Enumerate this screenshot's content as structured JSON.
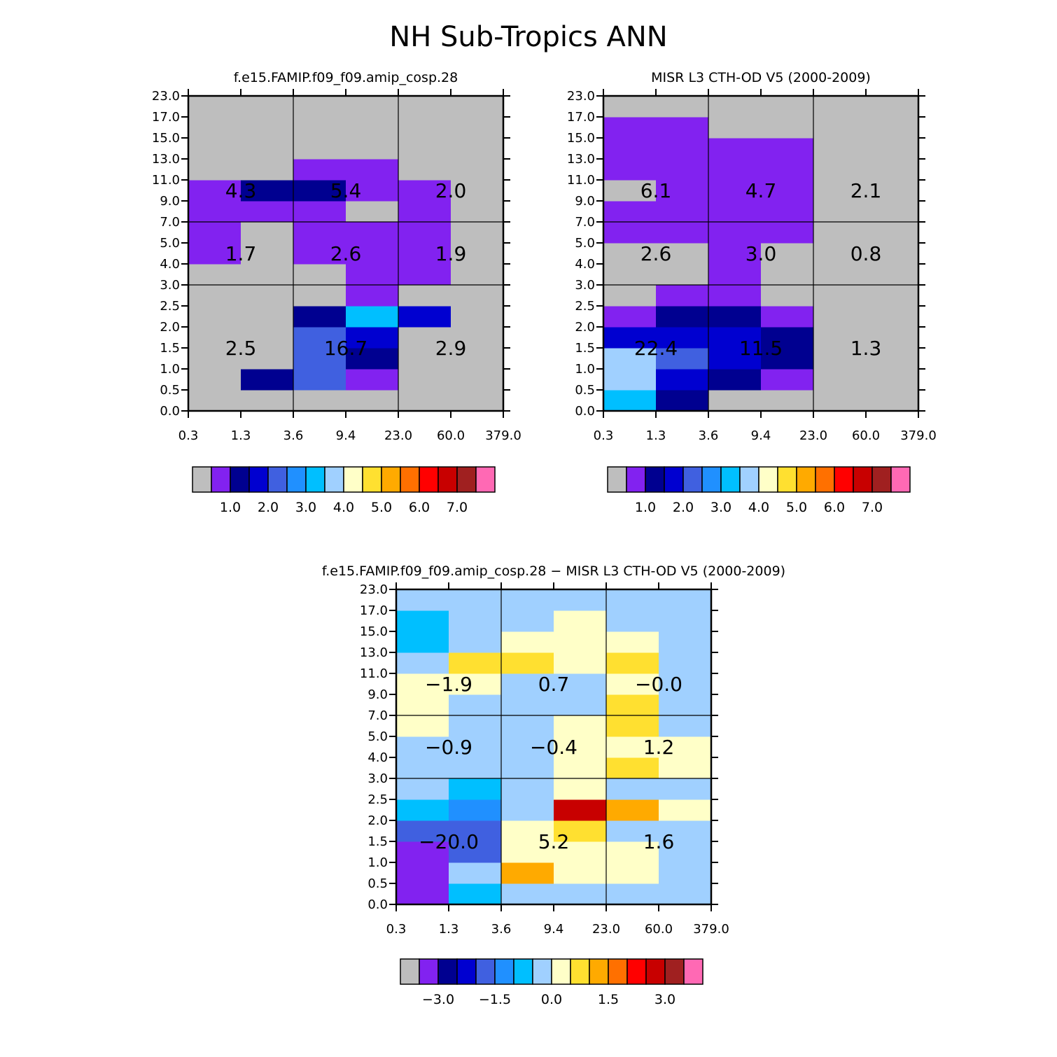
{
  "page_title": "NH Sub-Tropics ANN",
  "color_ramps": {
    "absolute": {
      "colors": [
        "#bebebe",
        "#8222f0",
        "#000090",
        "#0000d0",
        "#4060e0",
        "#2090ff",
        "#00bfff",
        "#a0d0ff",
        "#ffffc8",
        "#ffe030",
        "#ffaa00",
        "#ff7000",
        "#ff0000",
        "#c80000",
        "#a02020",
        "#ff69b4"
      ],
      "tick_labels": [
        "1.0",
        "2.0",
        "3.0",
        "4.0",
        "5.0",
        "6.0",
        "7.0"
      ],
      "tick_after_index": [
        1,
        3,
        5,
        7,
        9,
        11,
        13
      ]
    },
    "difference": {
      "colors": [
        "#bebebe",
        "#8222f0",
        "#000090",
        "#0000d0",
        "#4060e0",
        "#2090ff",
        "#00bfff",
        "#a0d0ff",
        "#ffffc8",
        "#ffe030",
        "#ffaa00",
        "#ff7000",
        "#ff0000",
        "#c80000",
        "#a02020",
        "#ff69b4"
      ],
      "tick_labels": [
        "−3.0",
        "−1.5",
        "0.0",
        "1.5",
        "3.0"
      ],
      "tick_after_index": [
        1,
        4,
        7,
        10,
        13
      ]
    }
  },
  "chart_data": [
    {
      "type": "heatmap",
      "title": "f.e15.FAMIP.f09_f09.amip_cosp.28",
      "x_tick_labels": [
        "0.3",
        "1.3",
        "3.6",
        "9.4",
        "23.0",
        "60.0",
        "379.0"
      ],
      "y_tick_labels": [
        "0.0",
        "0.5",
        "1.0",
        "1.5",
        "2.0",
        "2.5",
        "3.0",
        "4.0",
        "5.0",
        "7.0",
        "9.0",
        "11.0",
        "13.0",
        "15.0",
        "17.0",
        "23.0"
      ],
      "color_ramp": "absolute",
      "cells_bottom_to_top": [
        [
          0,
          0,
          0,
          0,
          0,
          0
        ],
        [
          0,
          2,
          4,
          1,
          0,
          0
        ],
        [
          0,
          0,
          4,
          2,
          0,
          0
        ],
        [
          0,
          0,
          4,
          3,
          0,
          0
        ],
        [
          0,
          0,
          2,
          6,
          3,
          0
        ],
        [
          0,
          0,
          0,
          1,
          0,
          0
        ],
        [
          0,
          0,
          0,
          1,
          1,
          0
        ],
        [
          1,
          0,
          1,
          1,
          1,
          0
        ],
        [
          1,
          0,
          1,
          1,
          1,
          0
        ],
        [
          1,
          1,
          1,
          0,
          1,
          0
        ],
        [
          1,
          2,
          2,
          1,
          1,
          0
        ],
        [
          0,
          0,
          1,
          1,
          0,
          0
        ],
        [
          0,
          0,
          0,
          0,
          0,
          0
        ],
        [
          0,
          0,
          0,
          0,
          0,
          0
        ],
        [
          0,
          0,
          0,
          0,
          0,
          0
        ]
      ],
      "annotations": [
        {
          "label": "2.5",
          "col_group": 0,
          "row_group": 0
        },
        {
          "label": "16.7",
          "col_group": 1,
          "row_group": 0
        },
        {
          "label": "2.9",
          "col_group": 2,
          "row_group": 0
        },
        {
          "label": "1.7",
          "col_group": 0,
          "row_group": 1
        },
        {
          "label": "2.6",
          "col_group": 1,
          "row_group": 1
        },
        {
          "label": "1.9",
          "col_group": 2,
          "row_group": 1
        },
        {
          "label": "4.3",
          "col_group": 0,
          "row_group": 2
        },
        {
          "label": "5.4",
          "col_group": 1,
          "row_group": 2
        },
        {
          "label": "2.0",
          "col_group": 2,
          "row_group": 2
        }
      ]
    },
    {
      "type": "heatmap",
      "title": "MISR L3 CTH-OD V5 (2000-2009)",
      "x_tick_labels": [
        "0.3",
        "1.3",
        "3.6",
        "9.4",
        "23.0",
        "60.0",
        "379.0"
      ],
      "y_tick_labels": [
        "0.0",
        "0.5",
        "1.0",
        "1.5",
        "2.0",
        "2.5",
        "3.0",
        "4.0",
        "5.0",
        "7.0",
        "9.0",
        "11.0",
        "13.0",
        "15.0",
        "17.0",
        "23.0"
      ],
      "color_ramp": "absolute",
      "cells_bottom_to_top": [
        [
          6,
          2,
          0,
          0,
          0,
          0
        ],
        [
          7,
          3,
          2,
          1,
          0,
          0
        ],
        [
          7,
          4,
          3,
          2,
          0,
          0
        ],
        [
          3,
          3,
          3,
          2,
          0,
          0
        ],
        [
          1,
          2,
          2,
          1,
          0,
          0
        ],
        [
          0,
          1,
          1,
          0,
          0,
          0
        ],
        [
          0,
          0,
          1,
          0,
          0,
          0
        ],
        [
          0,
          0,
          1,
          0,
          0,
          0
        ],
        [
          1,
          1,
          1,
          1,
          0,
          0
        ],
        [
          1,
          1,
          1,
          1,
          0,
          0
        ],
        [
          0,
          1,
          1,
          1,
          0,
          0
        ],
        [
          1,
          1,
          1,
          1,
          0,
          0
        ],
        [
          1,
          1,
          1,
          1,
          0,
          0
        ],
        [
          1,
          1,
          0,
          0,
          0,
          0
        ],
        [
          0,
          0,
          0,
          0,
          0,
          0
        ]
      ],
      "annotations": [
        {
          "label": "22.4",
          "col_group": 0,
          "row_group": 0
        },
        {
          "label": "11.5",
          "col_group": 1,
          "row_group": 0
        },
        {
          "label": "1.3",
          "col_group": 2,
          "row_group": 0
        },
        {
          "label": "2.6",
          "col_group": 0,
          "row_group": 1
        },
        {
          "label": "3.0",
          "col_group": 1,
          "row_group": 1
        },
        {
          "label": "0.8",
          "col_group": 2,
          "row_group": 1
        },
        {
          "label": "6.1",
          "col_group": 0,
          "row_group": 2
        },
        {
          "label": "4.7",
          "col_group": 1,
          "row_group": 2
        },
        {
          "label": "2.1",
          "col_group": 2,
          "row_group": 2
        }
      ]
    },
    {
      "type": "heatmap",
      "title": "f.e15.FAMIP.f09_f09.amip_cosp.28 − MISR L3 CTH-OD V5 (2000-2009)",
      "x_tick_labels": [
        "0.3",
        "1.3",
        "3.6",
        "9.4",
        "23.0",
        "60.0",
        "379.0"
      ],
      "y_tick_labels": [
        "0.0",
        "0.5",
        "1.0",
        "1.5",
        "2.0",
        "2.5",
        "3.0",
        "4.0",
        "5.0",
        "7.0",
        "9.0",
        "11.0",
        "13.0",
        "15.0",
        "17.0",
        "23.0"
      ],
      "color_ramp": "difference",
      "cells_bottom_to_top": [
        [
          1,
          6,
          7,
          7,
          7,
          7
        ],
        [
          1,
          7,
          10,
          8,
          8,
          7
        ],
        [
          1,
          4,
          8,
          8,
          8,
          7
        ],
        [
          4,
          4,
          8,
          9,
          7,
          7
        ],
        [
          6,
          5,
          7,
          13,
          10,
          8
        ],
        [
          7,
          6,
          7,
          8,
          7,
          7
        ],
        [
          7,
          7,
          7,
          8,
          9,
          8
        ],
        [
          7,
          7,
          7,
          8,
          8,
          8
        ],
        [
          8,
          7,
          7,
          8,
          9,
          7
        ],
        [
          8,
          7,
          7,
          7,
          9,
          7
        ],
        [
          8,
          8,
          7,
          7,
          8,
          7
        ],
        [
          7,
          9,
          9,
          8,
          9,
          7
        ],
        [
          6,
          7,
          8,
          8,
          8,
          7
        ],
        [
          6,
          7,
          7,
          8,
          7,
          7
        ],
        [
          7,
          7,
          7,
          7,
          7,
          7
        ]
      ],
      "annotations": [
        {
          "label": "−20.0",
          "col_group": 0,
          "row_group": 0
        },
        {
          "label": "5.2",
          "col_group": 1,
          "row_group": 0
        },
        {
          "label": "1.6",
          "col_group": 2,
          "row_group": 0
        },
        {
          "label": "−0.9",
          "col_group": 0,
          "row_group": 1
        },
        {
          "label": "−0.4",
          "col_group": 1,
          "row_group": 1
        },
        {
          "label": "1.2",
          "col_group": 2,
          "row_group": 1
        },
        {
          "label": "−1.9",
          "col_group": 0,
          "row_group": 2
        },
        {
          "label": "0.7",
          "col_group": 1,
          "row_group": 2
        },
        {
          "label": "−0.0",
          "col_group": 2,
          "row_group": 2
        }
      ]
    }
  ]
}
